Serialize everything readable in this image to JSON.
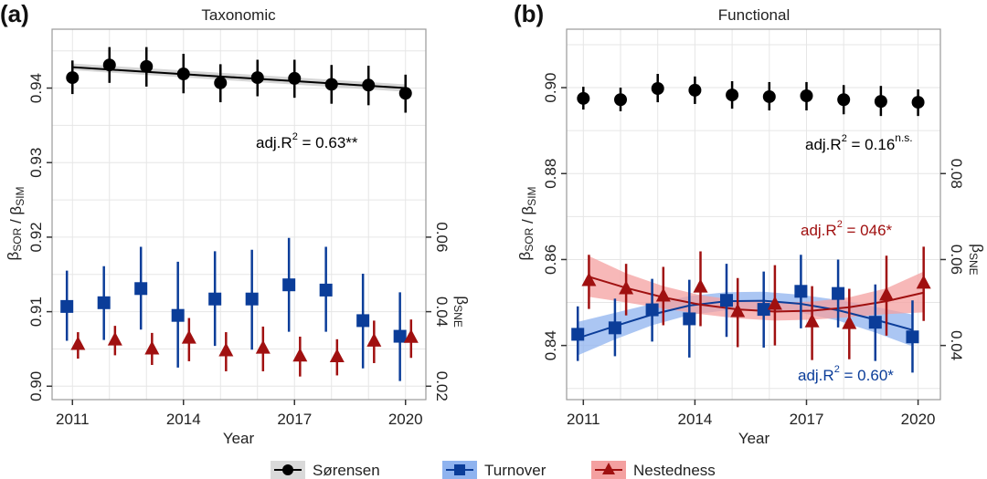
{
  "legend": {
    "items": [
      {
        "label": "Sørensen",
        "key": "sorensen"
      },
      {
        "label": "Turnover",
        "key": "turnover"
      },
      {
        "label": "Nestedness",
        "key": "nestedness"
      }
    ],
    "placement": "bottom-center"
  },
  "colors": {
    "sorensen": "#000000",
    "sorensen_band": "#c8c8c8",
    "turnover": "#0b3d99",
    "turnover_band": "#8fb3ef",
    "nestedness": "#a01010",
    "nestedness_band": "#f4a0a0",
    "grid": "#e6e6e6",
    "frame": "#9a9a9a"
  },
  "chart_data": [
    {
      "type": "scatter",
      "panel_label": "(a)",
      "title": "Taxonomic",
      "xlabel": "Year",
      "ylabel_left": "βSOR / βSIM",
      "ylabel_right": "βSNE",
      "x_ticks": [
        2011,
        2014,
        2017,
        2020
      ],
      "xlim": [
        2010.45,
        2020.55
      ],
      "ylim_left": [
        0.8982,
        0.9479
      ],
      "yticks_left": [
        "0.90",
        "0.91",
        "0.92",
        "0.93",
        "0.94"
      ],
      "yticks_left_values": [
        0.9,
        0.91,
        0.92,
        0.93,
        0.94
      ],
      "ylim_right": [
        0.0164,
        0.1158
      ],
      "yticks_right": [
        "0.02",
        "0.04",
        "0.06"
      ],
      "yticks_right_values": [
        0.02,
        0.04,
        0.06
      ],
      "grid": true,
      "x": [
        2011,
        2012,
        2013,
        2014,
        2015,
        2016,
        2017,
        2018,
        2019,
        2020
      ],
      "series": [
        {
          "name": "Sørensen",
          "key": "sorensen",
          "axis": "left",
          "marker": "circle",
          "offset": 0,
          "values": [
            0.9414,
            0.9431,
            0.9429,
            0.9419,
            0.9407,
            0.9414,
            0.9413,
            0.9405,
            0.9404,
            0.9393
          ],
          "lower": [
            0.9392,
            0.9407,
            0.9402,
            0.9393,
            0.9381,
            0.9389,
            0.9387,
            0.9379,
            0.9377,
            0.9367
          ],
          "upper": [
            0.9437,
            0.9455,
            0.9455,
            0.9446,
            0.9432,
            0.9438,
            0.9438,
            0.9431,
            0.943,
            0.9418
          ],
          "fit": {
            "type": "linear",
            "x": [
              2011,
              2020
            ],
            "y": [
              0.9428,
              0.94
            ],
            "band_lower": [
              0.9424,
              0.9395
            ],
            "band_upper": [
              0.9433,
              0.9405
            ]
          }
        },
        {
          "name": "Turnover",
          "key": "turnover",
          "axis": "left",
          "marker": "square",
          "offset": -0.15,
          "values": [
            0.9107,
            0.9112,
            0.9131,
            0.9095,
            0.9117,
            0.9117,
            0.9136,
            0.9129,
            0.9088,
            0.9067
          ],
          "lower": [
            0.9061,
            0.9062,
            0.9076,
            0.9025,
            0.9054,
            0.9049,
            0.9073,
            0.9073,
            0.9024,
            0.9007
          ],
          "upper": [
            0.9155,
            0.9161,
            0.9187,
            0.9167,
            0.9181,
            0.9183,
            0.9199,
            0.9187,
            0.9151,
            0.9126
          ]
        },
        {
          "name": "Nestedness",
          "key": "nestedness",
          "axis": "right",
          "marker": "triangle",
          "offset": 0.15,
          "values": [
            0.0312,
            0.0324,
            0.03,
            0.0329,
            0.0295,
            0.0302,
            0.0281,
            0.0279,
            0.0321,
            0.0331
          ],
          "lower": [
            0.0274,
            0.0283,
            0.0257,
            0.0267,
            0.024,
            0.024,
            0.0226,
            0.0229,
            0.0262,
            0.0276
          ],
          "upper": [
            0.0345,
            0.0362,
            0.0343,
            0.0383,
            0.0345,
            0.036,
            0.0333,
            0.0326,
            0.0376,
            0.0379
          ]
        }
      ],
      "annotations": [
        {
          "text": "adj.R",
          "sup": "2",
          "rest": " = 0.63**",
          "sup2": "",
          "color_key": "sorensen"
        }
      ]
    },
    {
      "type": "scatter",
      "panel_label": "(b)",
      "title": "Functional",
      "xlabel": "Year",
      "ylabel_left": "βSOR / βSIM",
      "ylabel_right": "βSNE",
      "x_ticks": [
        2011,
        2014,
        2017,
        2020
      ],
      "xlim": [
        2010.55,
        2020.6
      ],
      "ylim_left": [
        0.8274,
        0.9136
      ],
      "yticks_left": [
        "0.84",
        "0.86",
        "0.88",
        "0.90"
      ],
      "yticks_left_values": [
        0.84,
        0.86,
        0.88,
        0.9
      ],
      "ylim_right": [
        0.0274,
        0.1136
      ],
      "yticks_right": [
        "0.04",
        "0.06",
        "0.08"
      ],
      "yticks_right_values": [
        0.04,
        0.06,
        0.08
      ],
      "grid": true,
      "x": [
        2011,
        2012,
        2013,
        2014,
        2015,
        2016,
        2017,
        2018,
        2019,
        2020
      ],
      "series": [
        {
          "name": "Sørensen",
          "key": "sorensen",
          "axis": "left",
          "marker": "circle",
          "offset": 0,
          "values": [
            0.8975,
            0.8972,
            0.8998,
            0.8994,
            0.8983,
            0.8979,
            0.8981,
            0.8972,
            0.8968,
            0.8966
          ],
          "lower": [
            0.8949,
            0.8945,
            0.8966,
            0.8962,
            0.8951,
            0.8947,
            0.8947,
            0.8938,
            0.8934,
            0.8934
          ],
          "upper": [
            0.9002,
            0.9,
            0.9032,
            0.9026,
            0.9015,
            0.9013,
            0.9013,
            0.9006,
            0.9004,
            0.8996
          ]
        },
        {
          "name": "Turnover",
          "key": "turnover",
          "axis": "left",
          "marker": "square",
          "offset": -0.15,
          "values": [
            0.8426,
            0.8441,
            0.8483,
            0.8462,
            0.8505,
            0.8484,
            0.8526,
            0.8521,
            0.8454,
            0.842
          ],
          "lower": [
            0.8364,
            0.8375,
            0.8409,
            0.8372,
            0.842,
            0.8395,
            0.844,
            0.8442,
            0.8364,
            0.8337
          ],
          "upper": [
            0.8491,
            0.8509,
            0.8555,
            0.8553,
            0.859,
            0.8572,
            0.8611,
            0.86,
            0.8542,
            0.8505
          ],
          "fit": {
            "type": "quadratic",
            "x": [
              2011,
              2012,
              2013,
              2014,
              2015,
              2016,
              2017,
              2018,
              2019,
              2020
            ],
            "y": [
              0.8417,
              0.8445,
              0.8472,
              0.8493,
              0.8503,
              0.8504,
              0.8497,
              0.8482,
              0.846,
              0.8436
            ],
            "band_lower": [
              0.8377,
              0.8414,
              0.8447,
              0.8471,
              0.8482,
              0.8483,
              0.8476,
              0.8458,
              0.843,
              0.8398
            ],
            "band_upper": [
              0.8455,
              0.8476,
              0.8497,
              0.8515,
              0.8524,
              0.8525,
              0.8518,
              0.8506,
              0.849,
              0.8472
            ]
          }
        },
        {
          "name": "Nestedness",
          "key": "nestedness",
          "axis": "right",
          "marker": "triangle",
          "offset": 0.15,
          "values": [
            0.0551,
            0.0532,
            0.0515,
            0.0536,
            0.0479,
            0.0496,
            0.0455,
            0.0451,
            0.0517,
            0.0545
          ],
          "lower": [
            0.0485,
            0.047,
            0.0447,
            0.0445,
            0.0396,
            0.04,
            0.0366,
            0.0368,
            0.0423,
            0.0457
          ],
          "upper": [
            0.0611,
            0.059,
            0.0583,
            0.0619,
            0.0557,
            0.0587,
            0.0538,
            0.0532,
            0.0609,
            0.063
          ],
          "fit": {
            "type": "quadratic",
            "x": [
              2011,
              2012,
              2013,
              2014,
              2015,
              2016,
              2017,
              2018,
              2019,
              2020
            ],
            "y": [
              0.056,
              0.0534,
              0.0512,
              0.0495,
              0.0484,
              0.0479,
              0.0481,
              0.0489,
              0.0503,
              0.0523
            ],
            "band_lower": [
              0.0513,
              0.05,
              0.0486,
              0.0473,
              0.0463,
              0.0458,
              0.046,
              0.0466,
              0.0473,
              0.0477
            ],
            "band_upper": [
              0.0608,
              0.0568,
              0.0538,
              0.0517,
              0.0505,
              0.05,
              0.0502,
              0.0512,
              0.0533,
              0.0572
            ]
          }
        }
      ],
      "annotations": [
        {
          "text": "adj.R",
          "sup": "2",
          "rest": " = 0.16",
          "sup2": "n.s.",
          "color_key": "sorensen"
        },
        {
          "text": "adj.R",
          "sup": "2",
          "rest": " = 046*",
          "sup2": "",
          "color_key": "nestedness"
        },
        {
          "text": "adj.R",
          "sup": "2",
          "rest": " = 0.60*",
          "sup2": "",
          "color_key": "turnover"
        }
      ]
    }
  ]
}
